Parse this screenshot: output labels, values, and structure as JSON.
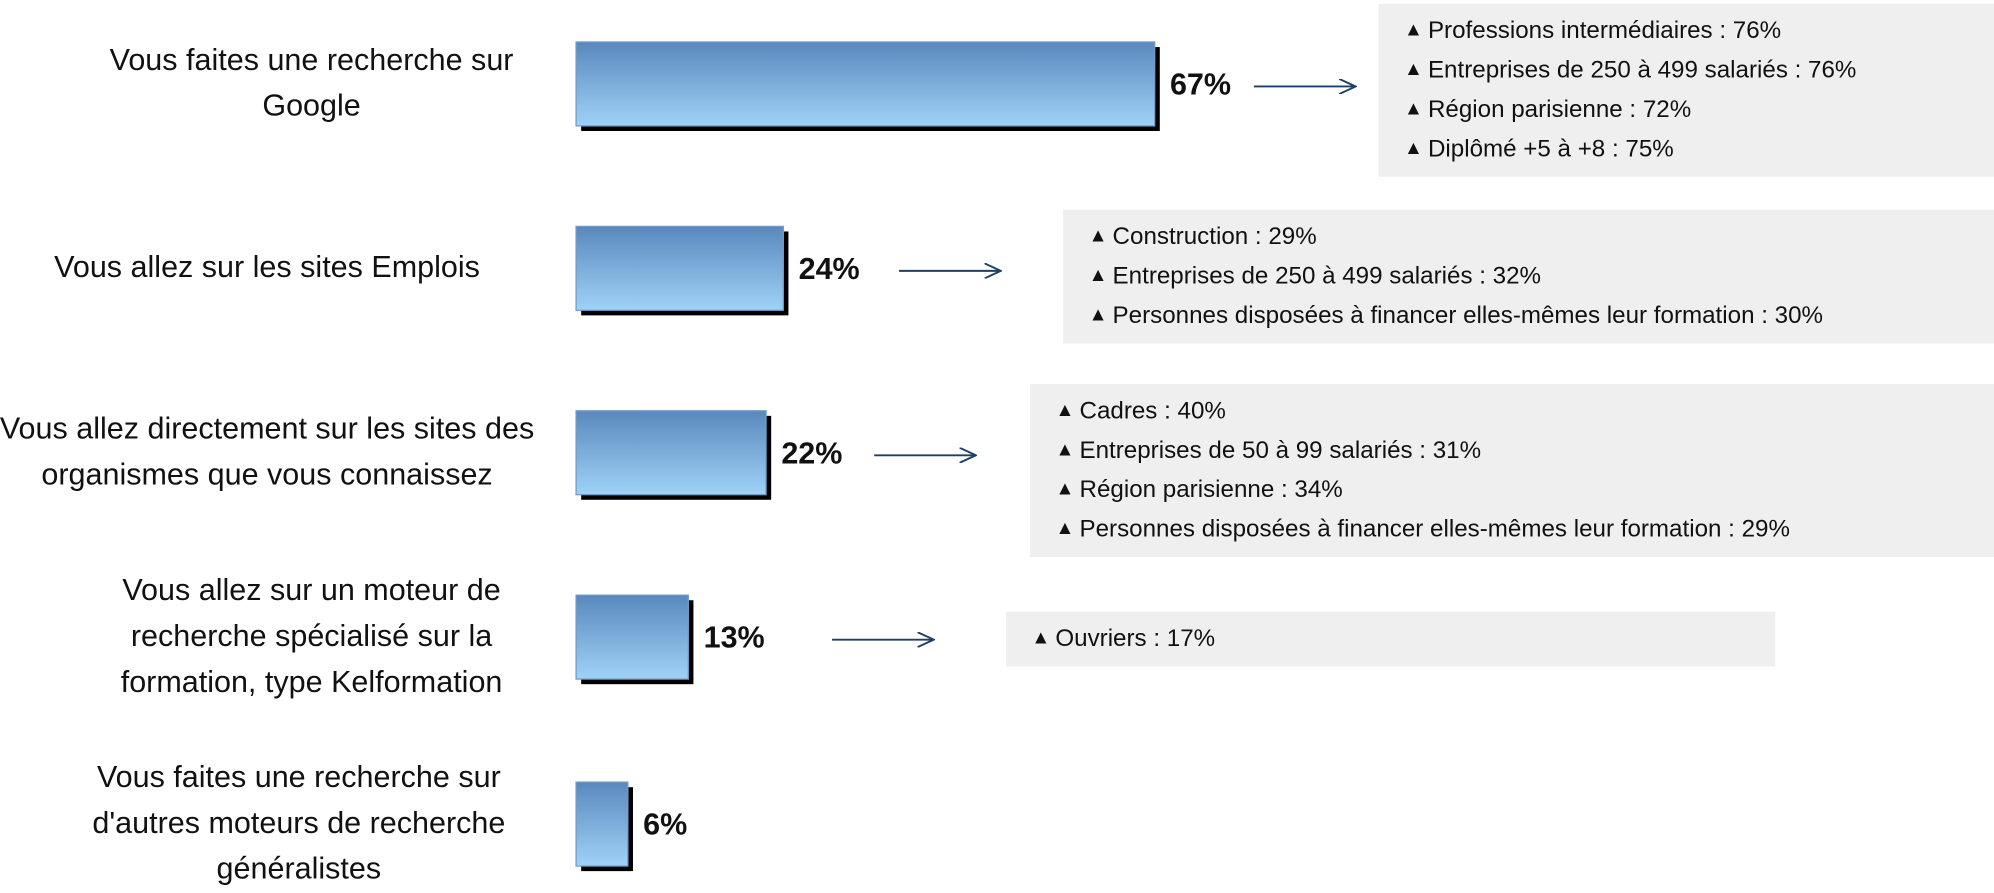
{
  "chart_data": {
    "type": "bar",
    "categories": [
      "Vous faites une recherche sur Google",
      "Vous allez sur les sites Emplois",
      "Vous allez directement sur les sites des organismes que vous connaissez",
      "Vous allez sur un moteur de recherche spécialisé sur la formation, type Kelformation",
      "Vous faites une recherche sur d'autres moteurs de recherche généralistes"
    ],
    "values": [
      67,
      24,
      22,
      13,
      6
    ],
    "value_labels": [
      "67%",
      "24%",
      "22%",
      "13%",
      "6%"
    ],
    "annotations": [
      [
        "Professions intermédiaires : 76%",
        "Entreprises de 250 à 499 salariés : 76%",
        "Région parisienne : 72%",
        "Diplômé +5 à +8 : 75%"
      ],
      [
        "Construction : 29%",
        "Entreprises de 250 à 499 salariés : 32%",
        "Personnes disposées à financer elles-mêmes leur formation : 30%"
      ],
      [
        "Cadres : 40%",
        "Entreprises de 50 à 99 salariés : 31%",
        "Région parisienne : 34%",
        "Personnes disposées à financer elles-mêmes leur formation : 29%"
      ],
      [
        "Ouvriers : 17%"
      ],
      null
    ]
  }
}
